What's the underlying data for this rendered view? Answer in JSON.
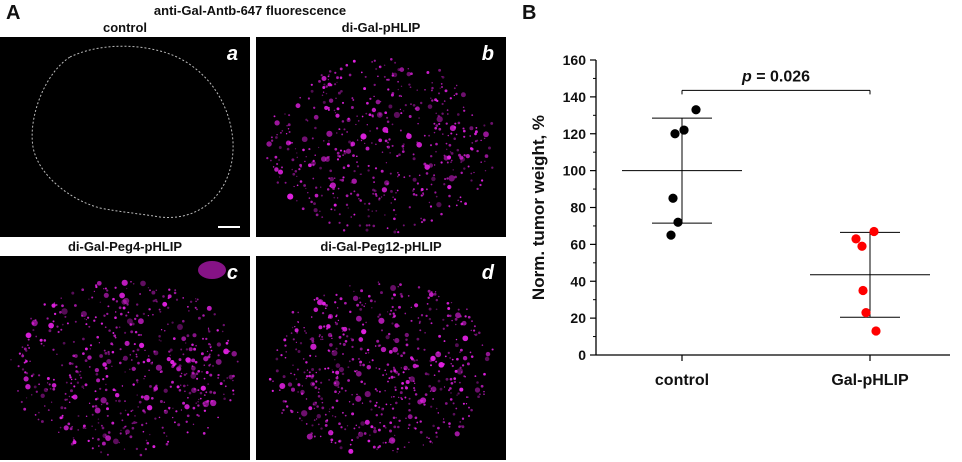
{
  "figure": {
    "panel_a_letter": "A",
    "panel_b_letter": "B",
    "panel_a_title": "anti-Gal-Antb-647 fluorescence"
  },
  "images": [
    {
      "title": "control",
      "tag": "a",
      "spots": 0,
      "seed": 1
    },
    {
      "title": "di-Gal-pHLIP",
      "tag": "b",
      "spots": 520,
      "seed": 7
    },
    {
      "title": "di-Gal-Peg4-pHLIP",
      "tag": "c",
      "spots": 560,
      "seed": 13
    },
    {
      "title": "di-Gal-Peg12-pHLIP",
      "tag": "d",
      "spots": 600,
      "seed": 29
    }
  ],
  "colors": {
    "fluorescence": "#e020e0",
    "control_points": "#000000",
    "treated_points": "#ff0000",
    "outline": "#bbbbbb",
    "scale_bar": "#ffffff"
  },
  "chart_data": {
    "type": "scatter",
    "title": "",
    "xlabel": "",
    "ylabel": "Norm. tumor weight, %",
    "categories": [
      "control",
      "Gal-pHLIP"
    ],
    "ylim": [
      0,
      160
    ],
    "yticks": [
      0,
      20,
      40,
      60,
      80,
      100,
      120,
      140,
      160
    ],
    "series": [
      {
        "category": "control",
        "color": "#000000",
        "values": [
          133,
          122,
          120,
          85,
          72,
          65
        ],
        "mean": 100,
        "sd_upper": 128.5,
        "sd_lower": 71.5
      },
      {
        "category": "Gal-pHLIP",
        "color": "#ff0000",
        "values": [
          67,
          63,
          59,
          35,
          23,
          13
        ],
        "mean": 43.5,
        "sd_upper": 66.5,
        "sd_lower": 20.5
      }
    ],
    "annotation": {
      "prefix": "p",
      "text": " = 0.026",
      "between": [
        "control",
        "Gal-pHLIP"
      ],
      "y": 143.5
    }
  }
}
